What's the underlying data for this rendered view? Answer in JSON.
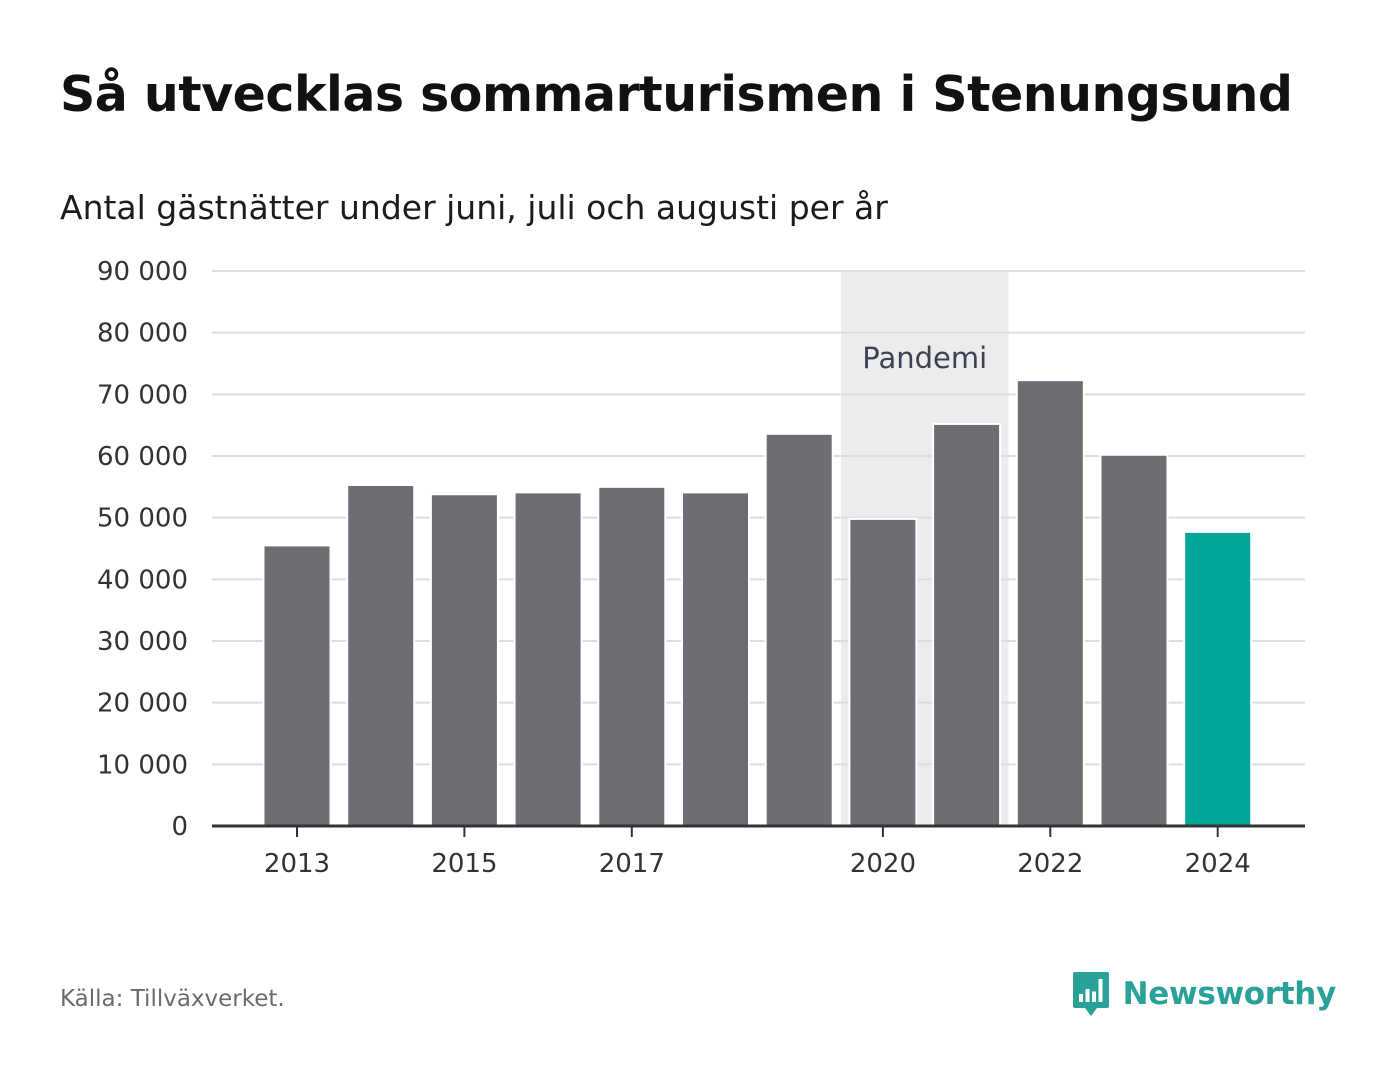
{
  "header": {
    "title": "Så utvecklas sommarturismen i Stenungsund",
    "subtitle": "Antal gästnätter under juni, juli och augusti per år"
  },
  "chart_data": {
    "type": "bar",
    "title": "Så utvecklas sommarturismen i Stenungsund",
    "subtitle": "Antal gästnätter under juni, juli och augusti per år",
    "xlabel": "",
    "ylabel": "",
    "categories": [
      "2013",
      "2014",
      "2015",
      "2016",
      "2017",
      "2018",
      "2019",
      "2020",
      "2021",
      "2022",
      "2023",
      "2024"
    ],
    "values": [
      45500,
      55300,
      53800,
      54100,
      55000,
      54100,
      63600,
      49800,
      65200,
      72300,
      60200,
      47700
    ],
    "x_tick_labels": [
      "2013",
      "2015",
      "2017",
      "2020",
      "2022",
      "2024"
    ],
    "ylim": [
      0,
      90000
    ],
    "y_ticks": [
      0,
      10000,
      20000,
      30000,
      40000,
      50000,
      60000,
      70000,
      80000,
      90000
    ],
    "y_tick_labels": [
      "0",
      "10 000",
      "20 000",
      "30 000",
      "40 000",
      "50 000",
      "60 000",
      "70 000",
      "80 000",
      "90 000"
    ],
    "grid": true,
    "legend": "none",
    "highlight_category": "2024",
    "annotation": {
      "label": "Pandemi",
      "from": "2020",
      "to": "2021"
    },
    "colors": {
      "bar": "#6e6d73",
      "highlight": "#00a69a",
      "band": "#ececec",
      "grid": "#dddddd",
      "axis": "#333333"
    }
  },
  "footer": {
    "source": "Källa: Tillväxverket.",
    "brand": "Newsworthy",
    "brand_icon": "newsworthy-chart-logo-icon",
    "brand_color": "#2aa198"
  }
}
